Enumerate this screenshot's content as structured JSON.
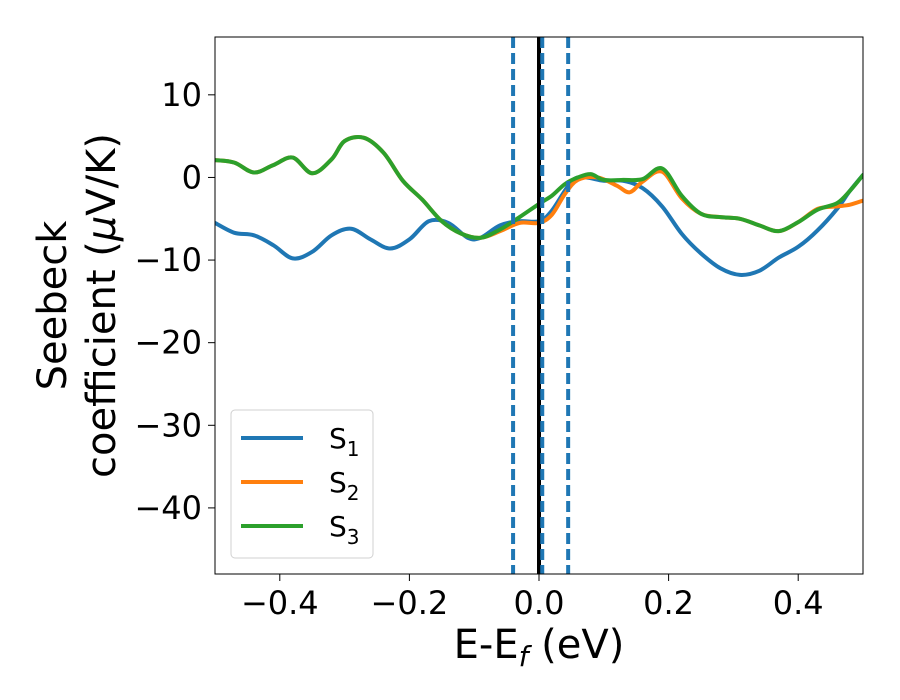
{
  "chart_data": {
    "type": "line",
    "xlabel_parts": [
      "E-E",
      "f",
      " (eV)"
    ],
    "ylabel_lines": [
      {
        "text": "Seebeck"
      },
      {
        "text": "coefficient  (",
        "mu": "μ",
        "rest": "V/K)"
      }
    ],
    "xlim": [
      -0.5,
      0.5
    ],
    "ylim": [
      -48,
      17
    ],
    "x_ticks": [
      -0.4,
      -0.2,
      0.0,
      0.2,
      0.4
    ],
    "x_tick_labels": [
      "−0.4",
      "−0.2",
      "0.0",
      "0.2",
      "0.4"
    ],
    "y_ticks": [
      10,
      0,
      -10,
      -20,
      -30,
      -40
    ],
    "y_tick_labels": [
      "10",
      "0",
      "−10",
      "−20",
      "−30",
      "−40"
    ],
    "grid": false,
    "legend_position": "lower-left",
    "vertical_lines": [
      {
        "x": 0.0,
        "style": "solid",
        "color": "#000000"
      },
      {
        "x": -0.04,
        "style": "dashed",
        "color": "#1f77b4"
      },
      {
        "x": 0.005,
        "style": "dashed",
        "color": "#1f77b4"
      },
      {
        "x": 0.045,
        "style": "dashed",
        "color": "#1f77b4"
      }
    ],
    "series": [
      {
        "name": "S",
        "sub": "1",
        "color": "#1f77b4",
        "points": [
          [
            -0.5,
            -5.5
          ],
          [
            -0.47,
            -6.7
          ],
          [
            -0.44,
            -7.0
          ],
          [
            -0.41,
            -8.2
          ],
          [
            -0.38,
            -9.8
          ],
          [
            -0.35,
            -9.0
          ],
          [
            -0.32,
            -7.0
          ],
          [
            -0.29,
            -6.2
          ],
          [
            -0.26,
            -7.5
          ],
          [
            -0.23,
            -8.6
          ],
          [
            -0.2,
            -7.5
          ],
          [
            -0.17,
            -5.3
          ],
          [
            -0.14,
            -5.5
          ],
          [
            -0.11,
            -7.3
          ],
          [
            -0.09,
            -7.3
          ],
          [
            -0.06,
            -5.8
          ],
          [
            -0.03,
            -5.3
          ],
          [
            0.0,
            -5.3
          ],
          [
            0.02,
            -4.0
          ],
          [
            0.05,
            -0.5
          ],
          [
            0.07,
            0.0
          ],
          [
            0.1,
            -0.4
          ],
          [
            0.13,
            -0.4
          ],
          [
            0.16,
            -1.3
          ],
          [
            0.19,
            -3.5
          ],
          [
            0.22,
            -6.8
          ],
          [
            0.25,
            -9.2
          ],
          [
            0.28,
            -11.0
          ],
          [
            0.31,
            -11.8
          ],
          [
            0.34,
            -11.3
          ],
          [
            0.37,
            -9.7
          ],
          [
            0.4,
            -8.4
          ],
          [
            0.43,
            -6.4
          ],
          [
            0.46,
            -3.8
          ],
          [
            0.48,
            -1.6
          ],
          [
            0.5,
            0.3
          ]
        ]
      },
      {
        "name": "S",
        "sub": "2",
        "color": "#ff7f0e",
        "points": [
          [
            -0.5,
            2.1
          ],
          [
            -0.47,
            1.8
          ],
          [
            -0.44,
            0.6
          ],
          [
            -0.41,
            1.5
          ],
          [
            -0.38,
            2.4
          ],
          [
            -0.35,
            0.5
          ],
          [
            -0.32,
            2.2
          ],
          [
            -0.3,
            4.4
          ],
          [
            -0.27,
            4.8
          ],
          [
            -0.24,
            3.0
          ],
          [
            -0.21,
            -0.4
          ],
          [
            -0.18,
            -2.7
          ],
          [
            -0.15,
            -5.3
          ],
          [
            -0.12,
            -6.8
          ],
          [
            -0.09,
            -7.3
          ],
          [
            -0.06,
            -6.5
          ],
          [
            -0.03,
            -5.5
          ],
          [
            0.0,
            -5.5
          ],
          [
            0.02,
            -4.5
          ],
          [
            0.04,
            -2.0
          ],
          [
            0.06,
            -0.3
          ],
          [
            0.09,
            0.0
          ],
          [
            0.12,
            -1.0
          ],
          [
            0.14,
            -1.8
          ],
          [
            0.16,
            -0.5
          ],
          [
            0.19,
            0.7
          ],
          [
            0.22,
            -2.5
          ],
          [
            0.25,
            -4.4
          ],
          [
            0.28,
            -4.8
          ],
          [
            0.31,
            -5.0
          ],
          [
            0.34,
            -5.8
          ],
          [
            0.37,
            -6.5
          ],
          [
            0.4,
            -5.4
          ],
          [
            0.43,
            -3.8
          ],
          [
            0.46,
            -3.5
          ],
          [
            0.48,
            -3.3
          ],
          [
            0.5,
            -2.8
          ]
        ]
      },
      {
        "name": "S",
        "sub": "3",
        "color": "#2ca02c",
        "points": [
          [
            -0.5,
            2.1
          ],
          [
            -0.47,
            1.8
          ],
          [
            -0.44,
            0.6
          ],
          [
            -0.41,
            1.5
          ],
          [
            -0.38,
            2.4
          ],
          [
            -0.35,
            0.5
          ],
          [
            -0.32,
            2.2
          ],
          [
            -0.3,
            4.4
          ],
          [
            -0.27,
            4.8
          ],
          [
            -0.24,
            3.0
          ],
          [
            -0.21,
            -0.4
          ],
          [
            -0.18,
            -2.7
          ],
          [
            -0.15,
            -5.3
          ],
          [
            -0.12,
            -6.8
          ],
          [
            -0.09,
            -7.3
          ],
          [
            -0.06,
            -6.3
          ],
          [
            -0.03,
            -4.8
          ],
          [
            0.0,
            -3.2
          ],
          [
            0.02,
            -2.2
          ],
          [
            0.04,
            -0.8
          ],
          [
            0.06,
            0.0
          ],
          [
            0.08,
            0.4
          ],
          [
            0.1,
            -0.3
          ],
          [
            0.13,
            -0.3
          ],
          [
            0.16,
            -0.2
          ],
          [
            0.19,
            1.1
          ],
          [
            0.22,
            -2.2
          ],
          [
            0.25,
            -4.4
          ],
          [
            0.28,
            -4.8
          ],
          [
            0.31,
            -5.0
          ],
          [
            0.34,
            -5.8
          ],
          [
            0.37,
            -6.5
          ],
          [
            0.4,
            -5.4
          ],
          [
            0.43,
            -3.9
          ],
          [
            0.46,
            -3.1
          ],
          [
            0.48,
            -1.6
          ],
          [
            0.5,
            0.3
          ]
        ]
      }
    ]
  }
}
